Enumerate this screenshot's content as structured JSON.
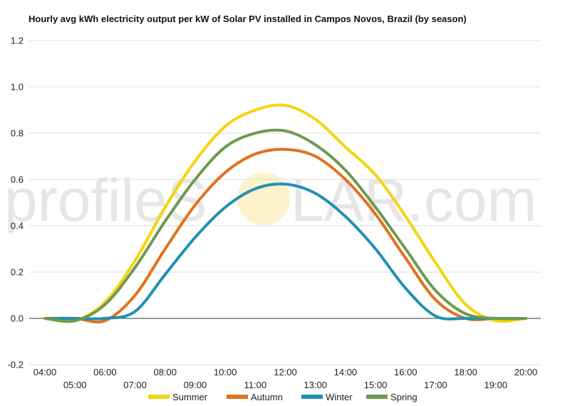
{
  "watermark": {
    "left": "profileS",
    "right": "LAR.com"
  },
  "chart_data": {
    "type": "line",
    "title": "Hourly avg kWh electricity output per kW of Solar PV installed in Campos Novos, Brazil (by season)",
    "xlabel": "",
    "ylabel": "",
    "ylim": [
      -0.2,
      1.2
    ],
    "yticks": [
      "-0.2",
      "0.0",
      "0.2",
      "0.4",
      "0.6",
      "0.8",
      "1.0",
      "1.2"
    ],
    "categories": [
      "04:00",
      "05:00",
      "06:00",
      "07:00",
      "08:00",
      "09:00",
      "10:00",
      "11:00",
      "12:00",
      "13:00",
      "14:00",
      "15:00",
      "16:00",
      "17:00",
      "18:00",
      "19:00",
      "20:00"
    ],
    "grid": true,
    "legend": "bottom",
    "series": [
      {
        "name": "Summer",
        "color": "#f5d40f",
        "values": [
          0,
          -0.01,
          0.07,
          0.25,
          0.48,
          0.68,
          0.83,
          0.9,
          0.92,
          0.86,
          0.74,
          0.62,
          0.44,
          0.24,
          0.06,
          -0.01,
          0
        ]
      },
      {
        "name": "Autumn",
        "color": "#e2711d",
        "values": [
          0,
          0,
          -0.01,
          0.1,
          0.3,
          0.49,
          0.63,
          0.71,
          0.73,
          0.7,
          0.6,
          0.45,
          0.26,
          0.08,
          0,
          0,
          0
        ]
      },
      {
        "name": "Winter",
        "color": "#2190b4",
        "values": [
          0,
          0,
          0,
          0.03,
          0.19,
          0.35,
          0.48,
          0.56,
          0.58,
          0.54,
          0.44,
          0.3,
          0.13,
          0.01,
          0,
          0,
          0
        ]
      },
      {
        "name": "Spring",
        "color": "#6d9a4f",
        "values": [
          0,
          -0.01,
          0.06,
          0.22,
          0.42,
          0.6,
          0.74,
          0.8,
          0.81,
          0.75,
          0.64,
          0.48,
          0.3,
          0.12,
          0.02,
          0,
          0
        ]
      }
    ]
  }
}
